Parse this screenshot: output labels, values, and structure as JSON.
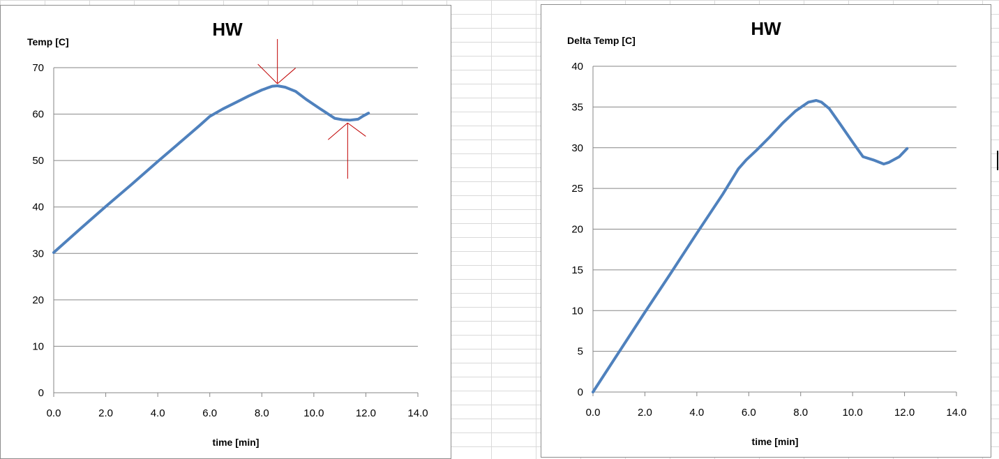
{
  "colors": {
    "series": "#4f81bd",
    "annotation": "#c00000",
    "grid": "#868686"
  },
  "chart_data": [
    {
      "type": "line",
      "title": "HW",
      "xlabel": "time [min]",
      "ylabel": "Temp [C]",
      "xlim": [
        0,
        14
      ],
      "ylim": [
        0,
        70
      ],
      "x_ticks": [
        "0.0",
        "2.0",
        "4.0",
        "6.0",
        "8.0",
        "10.0",
        "12.0",
        "14.0"
      ],
      "y_ticks": [
        "0",
        "10",
        "20",
        "30",
        "40",
        "50",
        "60",
        "70"
      ],
      "grid": true,
      "legend": "none",
      "series": [
        {
          "x": [
            0,
            1,
            2,
            3,
            4,
            5,
            5.6,
            6,
            6.5,
            7,
            7.5,
            8,
            8.4,
            8.6,
            8.9,
            9.3,
            9.7,
            10.2,
            10.5,
            10.8,
            11.1,
            11.4,
            11.7,
            11.9,
            12.1
          ],
          "y": [
            30.2,
            35.2,
            40.1,
            44.9,
            49.8,
            54.6,
            57.5,
            59.5,
            61.1,
            62.5,
            63.9,
            65.2,
            66.0,
            66.1,
            65.8,
            64.9,
            63.2,
            61.3,
            60.2,
            59.1,
            58.8,
            58.7,
            58.9,
            59.6,
            60.2
          ]
        }
      ],
      "annotations": [
        {
          "type": "arrow",
          "direction": "down",
          "x": 8.6,
          "y": 66.1
        },
        {
          "type": "arrow",
          "direction": "up",
          "x": 11.3,
          "y": 58.7
        }
      ]
    },
    {
      "type": "line",
      "title": "HW",
      "xlabel": "time [min]",
      "ylabel": "Delta Temp [C]",
      "xlim": [
        0,
        14
      ],
      "ylim": [
        0,
        40
      ],
      "x_ticks": [
        "0.0",
        "2.0",
        "4.0",
        "6.0",
        "8.0",
        "10.0",
        "12.0",
        "14.0"
      ],
      "y_ticks": [
        "0",
        "5",
        "10",
        "15",
        "20",
        "25",
        "30",
        "35",
        "40"
      ],
      "grid": true,
      "legend": "none",
      "series": [
        {
          "x": [
            0,
            1,
            2,
            3,
            4,
            5,
            5.6,
            5.9,
            6.3,
            6.8,
            7.3,
            7.8,
            8.3,
            8.6,
            8.8,
            9.1,
            9.5,
            10,
            10.4,
            10.8,
            11.2,
            11.4,
            11.8,
            12.1
          ],
          "y": [
            0,
            4.9,
            9.8,
            14.6,
            19.5,
            24.3,
            27.4,
            28.5,
            29.7,
            31.3,
            33.0,
            34.5,
            35.6,
            35.8,
            35.6,
            34.8,
            33.0,
            30.7,
            28.9,
            28.5,
            28.0,
            28.2,
            28.9,
            29.9
          ]
        }
      ]
    }
  ]
}
